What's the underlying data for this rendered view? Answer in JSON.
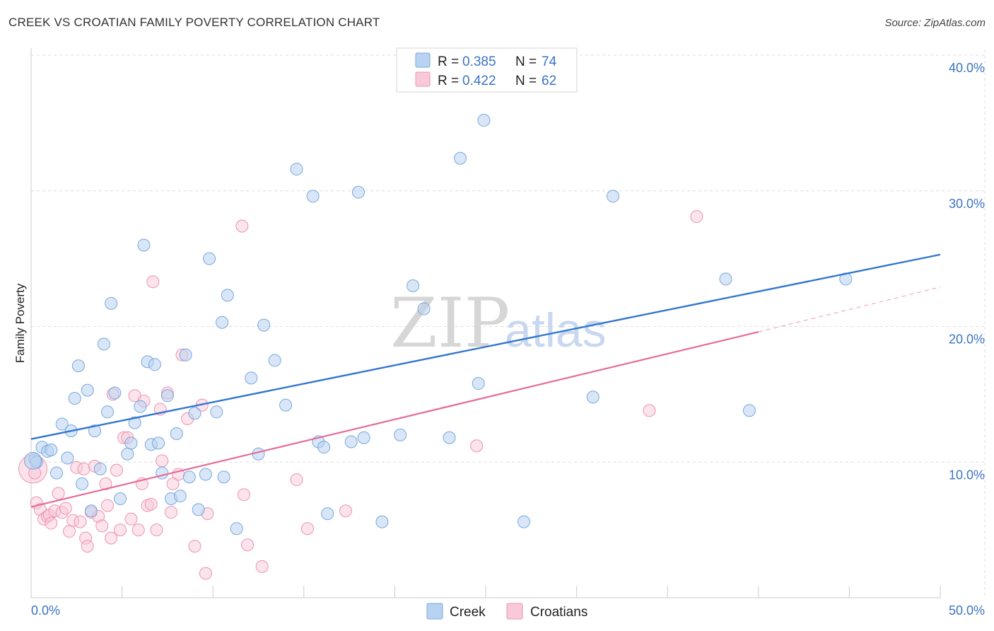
{
  "header": {
    "title": "CREEK VS CROATIAN FAMILY POVERTY CORRELATION CHART",
    "source": "Source: ZipAtlas.com"
  },
  "watermark": {
    "zip": "ZIP",
    "atlas": "atlas"
  },
  "colors": {
    "creek_fill": "#b8d2f2",
    "creek_stroke": "#7aa8dc",
    "creek_line": "#3276cf",
    "croatians_fill": "#f8c9d8",
    "croatians_stroke": "#ee93b1",
    "croatians_line": "#e46d97",
    "grid": "#dddddd",
    "axis_text": "#3b73c4"
  },
  "legend": {
    "rows": [
      {
        "r_label": "R =",
        "r_value": "0.385",
        "n_label": "N =",
        "n_value": "74"
      },
      {
        "r_label": "R =",
        "r_value": "0.422",
        "n_label": "N =",
        "n_value": "62"
      }
    ]
  },
  "chart_data": {
    "type": "scatter",
    "title": "CREEK VS CROATIAN FAMILY POVERTY CORRELATION CHART",
    "xlabel": "",
    "ylabel": "Family Poverty",
    "xlim": [
      0,
      50
    ],
    "ylim": [
      0,
      40
    ],
    "x_tick_labels": [
      "0.0%",
      "50.0%"
    ],
    "y_ticks": [
      10,
      20,
      30,
      40
    ],
    "y_tick_labels": [
      "10.0%",
      "20.0%",
      "30.0%",
      "40.0%"
    ],
    "grid": true,
    "legend_position": "top-center",
    "series": [
      {
        "name": "Creek",
        "r": 0.385,
        "n": 74,
        "trend": {
          "x": [
            0,
            50
          ],
          "y": [
            11.7,
            25.3
          ]
        },
        "points": [
          [
            0.2,
            10.2
          ],
          [
            0.3,
            10.0
          ],
          [
            0.6,
            11.1
          ],
          [
            0.9,
            10.8
          ],
          [
            1.1,
            10.9
          ],
          [
            1.4,
            9.2
          ],
          [
            1.7,
            12.8
          ],
          [
            2.0,
            10.3
          ],
          [
            2.2,
            12.3
          ],
          [
            2.4,
            14.7
          ],
          [
            2.6,
            17.1
          ],
          [
            2.8,
            8.4
          ],
          [
            3.1,
            15.3
          ],
          [
            3.3,
            6.4
          ],
          [
            3.5,
            12.3
          ],
          [
            3.8,
            9.5
          ],
          [
            4.0,
            18.7
          ],
          [
            4.2,
            13.7
          ],
          [
            4.4,
            21.7
          ],
          [
            4.6,
            15.1
          ],
          [
            4.9,
            7.3
          ],
          [
            5.3,
            10.6
          ],
          [
            5.5,
            11.4
          ],
          [
            5.7,
            12.9
          ],
          [
            6.0,
            14.1
          ],
          [
            6.2,
            26.0
          ],
          [
            6.4,
            17.4
          ],
          [
            6.6,
            11.3
          ],
          [
            6.8,
            17.2
          ],
          [
            7.0,
            11.4
          ],
          [
            7.2,
            9.2
          ],
          [
            7.5,
            14.9
          ],
          [
            7.7,
            7.3
          ],
          [
            8.0,
            12.1
          ],
          [
            8.2,
            7.5
          ],
          [
            8.5,
            17.9
          ],
          [
            8.7,
            8.9
          ],
          [
            9.0,
            13.6
          ],
          [
            9.2,
            6.5
          ],
          [
            9.6,
            9.1
          ],
          [
            9.8,
            25.0
          ],
          [
            10.2,
            13.7
          ],
          [
            10.5,
            20.3
          ],
          [
            10.6,
            8.9
          ],
          [
            10.8,
            22.3
          ],
          [
            11.3,
            5.1
          ],
          [
            12.1,
            16.2
          ],
          [
            12.5,
            10.6
          ],
          [
            12.8,
            20.1
          ],
          [
            13.4,
            17.5
          ],
          [
            14.0,
            14.2
          ],
          [
            14.6,
            31.6
          ],
          [
            15.5,
            29.6
          ],
          [
            15.8,
            11.5
          ],
          [
            16.1,
            11.1
          ],
          [
            16.3,
            6.2
          ],
          [
            17.6,
            11.5
          ],
          [
            18.0,
            29.9
          ],
          [
            18.3,
            11.8
          ],
          [
            19.3,
            5.6
          ],
          [
            20.3,
            12.0
          ],
          [
            21.0,
            23.0
          ],
          [
            21.6,
            21.3
          ],
          [
            23.0,
            11.8
          ],
          [
            23.6,
            32.4
          ],
          [
            24.6,
            15.8
          ],
          [
            24.9,
            35.2
          ],
          [
            27.1,
            5.6
          ],
          [
            30.9,
            14.8
          ],
          [
            32.0,
            29.6
          ],
          [
            38.2,
            23.5
          ],
          [
            39.5,
            13.8
          ],
          [
            44.8,
            23.5
          ],
          [
            0.1,
            10.1
          ]
        ]
      },
      {
        "name": "Croatians",
        "r": 0.422,
        "n": 62,
        "trend": {
          "x": [
            0,
            40
          ],
          "y": [
            6.7,
            19.6
          ]
        },
        "trend_extension": {
          "x": [
            40,
            50
          ],
          "y": [
            19.6,
            22.9
          ]
        },
        "points": [
          [
            0.1,
            9.5
          ],
          [
            0.3,
            7.0
          ],
          [
            0.5,
            6.5
          ],
          [
            0.7,
            5.8
          ],
          [
            0.9,
            6.0
          ],
          [
            1.0,
            6.1
          ],
          [
            1.1,
            5.5
          ],
          [
            1.3,
            6.4
          ],
          [
            1.5,
            7.7
          ],
          [
            1.7,
            6.3
          ],
          [
            1.9,
            6.6
          ],
          [
            2.1,
            4.9
          ],
          [
            2.3,
            5.7
          ],
          [
            2.5,
            9.6
          ],
          [
            2.7,
            5.6
          ],
          [
            2.9,
            9.5
          ],
          [
            3.0,
            4.4
          ],
          [
            3.1,
            3.8
          ],
          [
            3.3,
            6.3
          ],
          [
            3.5,
            9.7
          ],
          [
            3.7,
            6.0
          ],
          [
            3.9,
            5.3
          ],
          [
            4.1,
            8.4
          ],
          [
            4.2,
            6.8
          ],
          [
            4.4,
            4.4
          ],
          [
            4.5,
            15.0
          ],
          [
            4.7,
            9.4
          ],
          [
            4.9,
            5.0
          ],
          [
            5.1,
            11.8
          ],
          [
            5.3,
            11.8
          ],
          [
            5.5,
            5.8
          ],
          [
            5.7,
            14.9
          ],
          [
            5.9,
            5.0
          ],
          [
            6.1,
            8.4
          ],
          [
            6.2,
            14.5
          ],
          [
            6.4,
            6.8
          ],
          [
            6.6,
            6.9
          ],
          [
            6.7,
            23.3
          ],
          [
            6.9,
            5.0
          ],
          [
            7.1,
            13.9
          ],
          [
            7.2,
            10.1
          ],
          [
            7.5,
            15.1
          ],
          [
            7.7,
            6.3
          ],
          [
            7.8,
            8.4
          ],
          [
            8.1,
            9.1
          ],
          [
            8.3,
            17.9
          ],
          [
            8.6,
            13.2
          ],
          [
            9.0,
            3.8
          ],
          [
            9.4,
            14.2
          ],
          [
            9.6,
            1.8
          ],
          [
            9.7,
            6.2
          ],
          [
            11.6,
            27.4
          ],
          [
            11.7,
            7.6
          ],
          [
            11.9,
            3.9
          ],
          [
            12.7,
            2.3
          ],
          [
            14.6,
            8.7
          ],
          [
            15.2,
            5.1
          ],
          [
            17.3,
            6.4
          ],
          [
            24.5,
            11.2
          ],
          [
            34.0,
            13.8
          ],
          [
            36.6,
            28.1
          ],
          [
            0.2,
            9.2
          ]
        ]
      }
    ]
  },
  "bottom_legend": [
    {
      "label": "Creek"
    },
    {
      "label": "Croatians"
    }
  ]
}
